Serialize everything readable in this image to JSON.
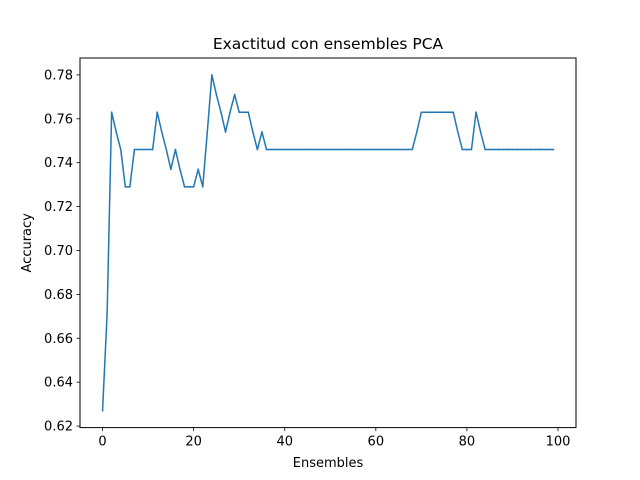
{
  "chart_data": {
    "type": "line",
    "title": "Exactitud con ensembles PCA",
    "xlabel": "Ensembles",
    "ylabel": "Accuracy",
    "xlim": [
      -4.95,
      103.95
    ],
    "ylim": [
      0.6193,
      0.7877
    ],
    "xticks": [
      0,
      20,
      40,
      60,
      80,
      100
    ],
    "xtick_labels": [
      "0",
      "20",
      "40",
      "60",
      "80",
      "100"
    ],
    "yticks": [
      0.62,
      0.64,
      0.66,
      0.68,
      0.7,
      0.72,
      0.74,
      0.76,
      0.78
    ],
    "ytick_labels": [
      "0.62",
      "0.64",
      "0.66",
      "0.68",
      "0.70",
      "0.72",
      "0.74",
      "0.76",
      "0.78"
    ],
    "grid": false,
    "series": [
      {
        "color": "#1f77b4",
        "x": [
          0,
          1,
          2,
          3,
          4,
          5,
          6,
          7,
          8,
          9,
          10,
          11,
          12,
          13,
          14,
          15,
          16,
          17,
          18,
          19,
          20,
          21,
          22,
          23,
          24,
          25,
          26,
          27,
          28,
          29,
          30,
          31,
          32,
          33,
          34,
          35,
          36,
          37,
          38,
          39,
          40,
          41,
          42,
          43,
          44,
          45,
          46,
          47,
          48,
          49,
          50,
          51,
          52,
          53,
          54,
          55,
          56,
          57,
          58,
          59,
          60,
          61,
          62,
          63,
          64,
          65,
          66,
          67,
          68,
          69,
          70,
          71,
          72,
          73,
          74,
          75,
          76,
          77,
          78,
          79,
          80,
          81,
          82,
          83,
          84,
          85,
          86,
          87,
          88,
          89,
          90,
          91,
          92,
          93,
          94,
          95,
          96,
          97,
          98,
          99
        ],
        "values": [
          0.627,
          0.671,
          0.763,
          0.754,
          0.746,
          0.729,
          0.729,
          0.746,
          0.746,
          0.746,
          0.746,
          0.746,
          0.763,
          0.754,
          0.746,
          0.737,
          0.746,
          0.737,
          0.729,
          0.729,
          0.729,
          0.737,
          0.729,
          0.754,
          0.78,
          0.771,
          0.763,
          0.754,
          0.763,
          0.771,
          0.763,
          0.763,
          0.763,
          0.754,
          0.746,
          0.754,
          0.746,
          0.746,
          0.746,
          0.746,
          0.746,
          0.746,
          0.746,
          0.746,
          0.746,
          0.746,
          0.746,
          0.746,
          0.746,
          0.746,
          0.746,
          0.746,
          0.746,
          0.746,
          0.746,
          0.746,
          0.746,
          0.746,
          0.746,
          0.746,
          0.746,
          0.746,
          0.746,
          0.746,
          0.746,
          0.746,
          0.746,
          0.746,
          0.746,
          0.754,
          0.763,
          0.763,
          0.763,
          0.763,
          0.763,
          0.763,
          0.763,
          0.763,
          0.754,
          0.746,
          0.746,
          0.746,
          0.763,
          0.754,
          0.746,
          0.746,
          0.746,
          0.746,
          0.746,
          0.746,
          0.746,
          0.746,
          0.746,
          0.746,
          0.746,
          0.746,
          0.746,
          0.746,
          0.746,
          0.746
        ]
      }
    ]
  }
}
